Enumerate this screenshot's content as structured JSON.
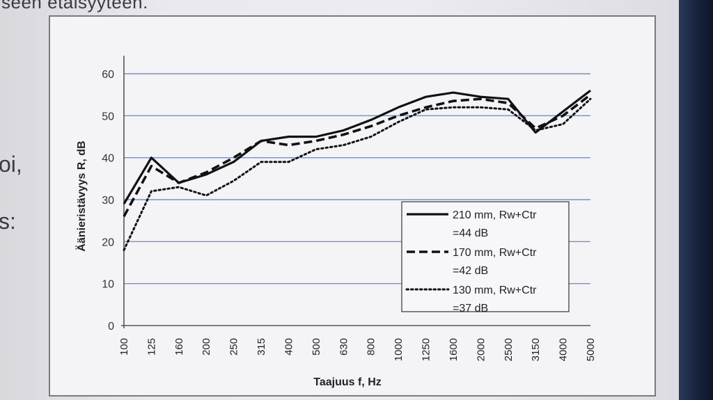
{
  "slide": {
    "heading_fragment": "seen etäisyyteen.",
    "bullet_fragment_1": "oi,",
    "bullet_fragment_2": "s:"
  },
  "colors": {
    "slide_bg": "#e9e9ee",
    "chart_bg": "#f4f4f7",
    "grid": "#7a8fc0",
    "axis": "#555555",
    "series": "#111111"
  },
  "chart_data": {
    "type": "line",
    "title": "",
    "xlabel": "Taajuus f, Hz",
    "ylabel": "Äänieristävyys R, dB",
    "ylim": [
      0,
      60
    ],
    "yticks": [
      0,
      10,
      20,
      30,
      40,
      50,
      60
    ],
    "grid": true,
    "legend_position": "bottom-right",
    "categories": [
      "100",
      "125",
      "160",
      "200",
      "250",
      "315",
      "400",
      "500",
      "630",
      "800",
      "1000",
      "1250",
      "1600",
      "2000",
      "2500",
      "3150",
      "4000",
      "5000"
    ],
    "series": [
      {
        "name": "210 mm, Rw+Ctr =44 dB",
        "legend_lines": [
          "210 mm, Rw+Ctr",
          "=44 dB"
        ],
        "style": "solid",
        "values": [
          29,
          40,
          34,
          36,
          39,
          44,
          45,
          45,
          46.5,
          49,
          52,
          54.5,
          55.5,
          54.5,
          54,
          46,
          51,
          56
        ]
      },
      {
        "name": "170 mm, Rw+Ctr =42 dB",
        "legend_lines": [
          "170 mm, Rw+Ctr",
          "=42 dB"
        ],
        "style": "dashed",
        "values": [
          26,
          38,
          34,
          36.5,
          40,
          44,
          43,
          44,
          45.5,
          47.5,
          50,
          52,
          53.5,
          54,
          53,
          47,
          50,
          55
        ]
      },
      {
        "name": "130 mm, Rw+Ctr =37 dB",
        "legend_lines": [
          "130 mm, Rw+Ctr",
          "=37 dB"
        ],
        "style": "dotted",
        "values": [
          18,
          32,
          33,
          31,
          34.5,
          39,
          39,
          42,
          43,
          45,
          48.5,
          51.5,
          52,
          52,
          51.5,
          46.5,
          48,
          54
        ]
      }
    ]
  }
}
